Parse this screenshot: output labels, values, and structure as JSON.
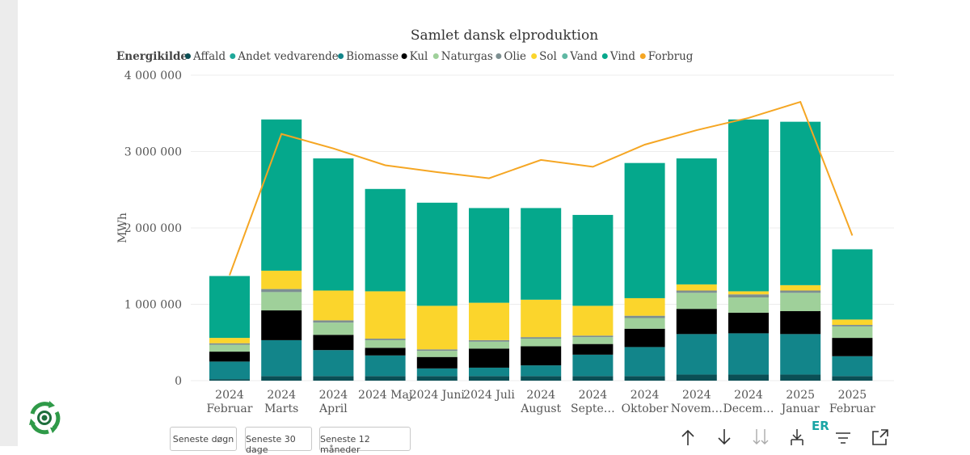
{
  "chart_data": {
    "type": "bar",
    "stacked": true,
    "title": "Samlet dansk elproduktion",
    "legend_title": "Energikilde",
    "legend_position": "top-left",
    "ylabel": "MWh",
    "xlabel": "",
    "ylim": [
      0,
      4000000
    ],
    "yticks": [
      0,
      1000000,
      2000000,
      3000000,
      4000000
    ],
    "ytick_labels": [
      "0",
      "1 000 000",
      "2 000 000",
      "3 000 000",
      "4 000 000"
    ],
    "grid": true,
    "categories": [
      [
        "2024",
        "Februar"
      ],
      [
        "2024",
        "Marts"
      ],
      [
        "2024",
        "April"
      ],
      [
        "2024 Maj"
      ],
      [
        "2024 Juni"
      ],
      [
        "2024 Juli"
      ],
      [
        "2024",
        "August"
      ],
      [
        "2024",
        "Septe…"
      ],
      [
        "2024",
        "Oktober"
      ],
      [
        "2024",
        "Novem…"
      ],
      [
        "2024",
        "Decem…"
      ],
      [
        "2025",
        "Januar"
      ],
      [
        "2025",
        "Februar"
      ]
    ],
    "series": [
      {
        "name": "Affald",
        "color": "#0b4f55",
        "values": [
          20000,
          60000,
          60000,
          60000,
          60000,
          60000,
          60000,
          60000,
          60000,
          80000,
          80000,
          80000,
          60000
        ]
      },
      {
        "name": "Andet vedvarende",
        "color": "#1fa89a",
        "values": [
          0,
          0,
          0,
          0,
          0,
          0,
          0,
          0,
          0,
          0,
          0,
          0,
          0
        ]
      },
      {
        "name": "Biomasse",
        "color": "#12858a",
        "values": [
          230000,
          470000,
          340000,
          270000,
          100000,
          110000,
          140000,
          280000,
          380000,
          530000,
          540000,
          530000,
          260000
        ]
      },
      {
        "name": "Kul",
        "color": "#000000",
        "values": [
          130000,
          390000,
          200000,
          100000,
          150000,
          250000,
          250000,
          140000,
          240000,
          330000,
          270000,
          300000,
          240000
        ]
      },
      {
        "name": "Naturgas",
        "color": "#9fd09a",
        "values": [
          90000,
          240000,
          160000,
          100000,
          80000,
          90000,
          100000,
          90000,
          140000,
          210000,
          200000,
          240000,
          150000
        ]
      },
      {
        "name": "Olie",
        "color": "#7d8f91",
        "values": [
          20000,
          40000,
          30000,
          20000,
          20000,
          20000,
          20000,
          20000,
          30000,
          30000,
          40000,
          30000,
          20000
        ]
      },
      {
        "name": "Sol",
        "color": "#fbd52c",
        "values": [
          70000,
          240000,
          390000,
          620000,
          570000,
          490000,
          490000,
          390000,
          230000,
          80000,
          40000,
          70000,
          70000
        ]
      },
      {
        "name": "Vand",
        "color": "#5fb8a3",
        "values": [
          0,
          0,
          0,
          0,
          0,
          0,
          0,
          0,
          0,
          0,
          0,
          0,
          0
        ]
      },
      {
        "name": "Vind",
        "color": "#05a88c",
        "values": [
          810000,
          1980000,
          1730000,
          1340000,
          1350000,
          1240000,
          1200000,
          1190000,
          1770000,
          1650000,
          2250000,
          2140000,
          920000
        ]
      }
    ],
    "line": {
      "name": "Forbrug",
      "color": "#f5a623",
      "values": [
        1380000,
        3230000,
        3040000,
        2820000,
        2730000,
        2650000,
        2890000,
        2800000,
        3090000,
        3280000,
        3440000,
        3650000,
        1900000
      ]
    }
  },
  "buttons": [
    "Seneste døgn",
    "Seneste 30 dage",
    "Seneste 12 måneder"
  ],
  "toolbar_icons": [
    "arrow-up-icon",
    "arrow-down-icon",
    "double-arrow-down-icon",
    "expand-hierarchy-icon",
    "filter-icon",
    "focus-mode-icon"
  ],
  "brand_snippet": "ER"
}
